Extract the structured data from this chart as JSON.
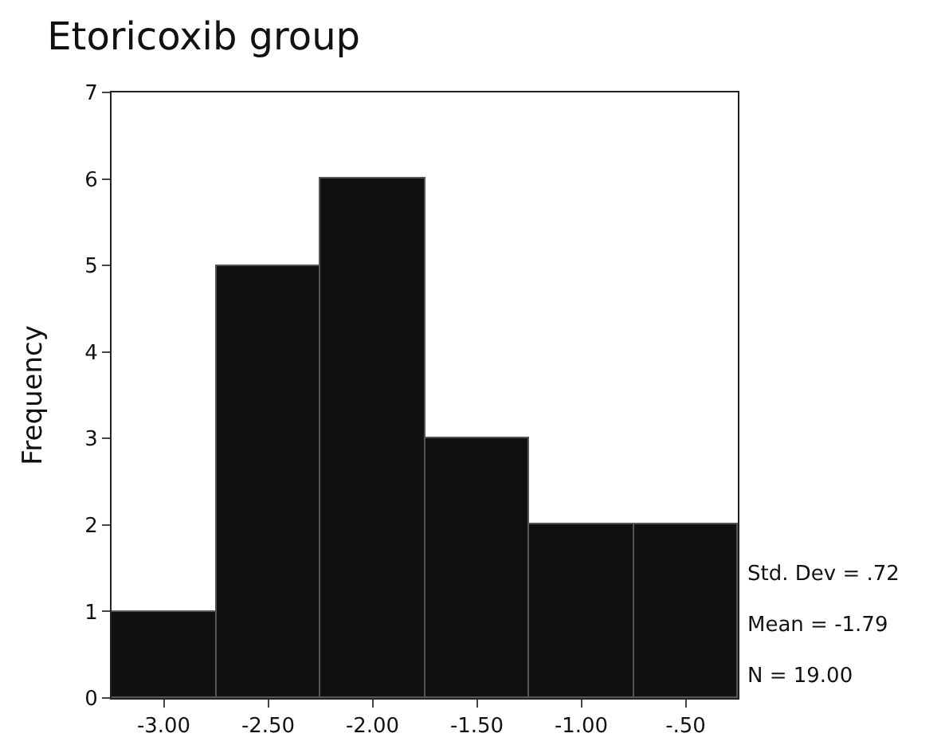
{
  "chart_data": {
    "type": "histogram",
    "title": "Etoricoxib group",
    "ylabel": "Frequency",
    "bins": [
      -3.25,
      -2.75,
      -2.25,
      -1.75,
      -1.25,
      -0.75,
      -0.25
    ],
    "values": [
      1,
      5,
      6,
      3,
      2,
      2
    ],
    "color": "#111111",
    "xlim": [
      -3.25,
      -0.25
    ],
    "xticks": [
      {
        "value": -3,
        "label": "-3.00"
      },
      {
        "value": -2.5,
        "label": "-2.50"
      },
      {
        "value": -2,
        "label": "-2.00"
      },
      {
        "value": -1.5,
        "label": "-1.50"
      },
      {
        "value": -1,
        "label": "-1.00"
      },
      {
        "value": -0.5,
        "label": "-.50"
      }
    ],
    "ylim": [
      0,
      7
    ],
    "yticks": [
      0,
      1,
      2,
      3,
      4,
      5,
      6,
      7
    ],
    "grid": false,
    "annotations": [
      "Std. Dev = .72",
      "Mean = -1.79",
      "N = 19.00"
    ]
  }
}
